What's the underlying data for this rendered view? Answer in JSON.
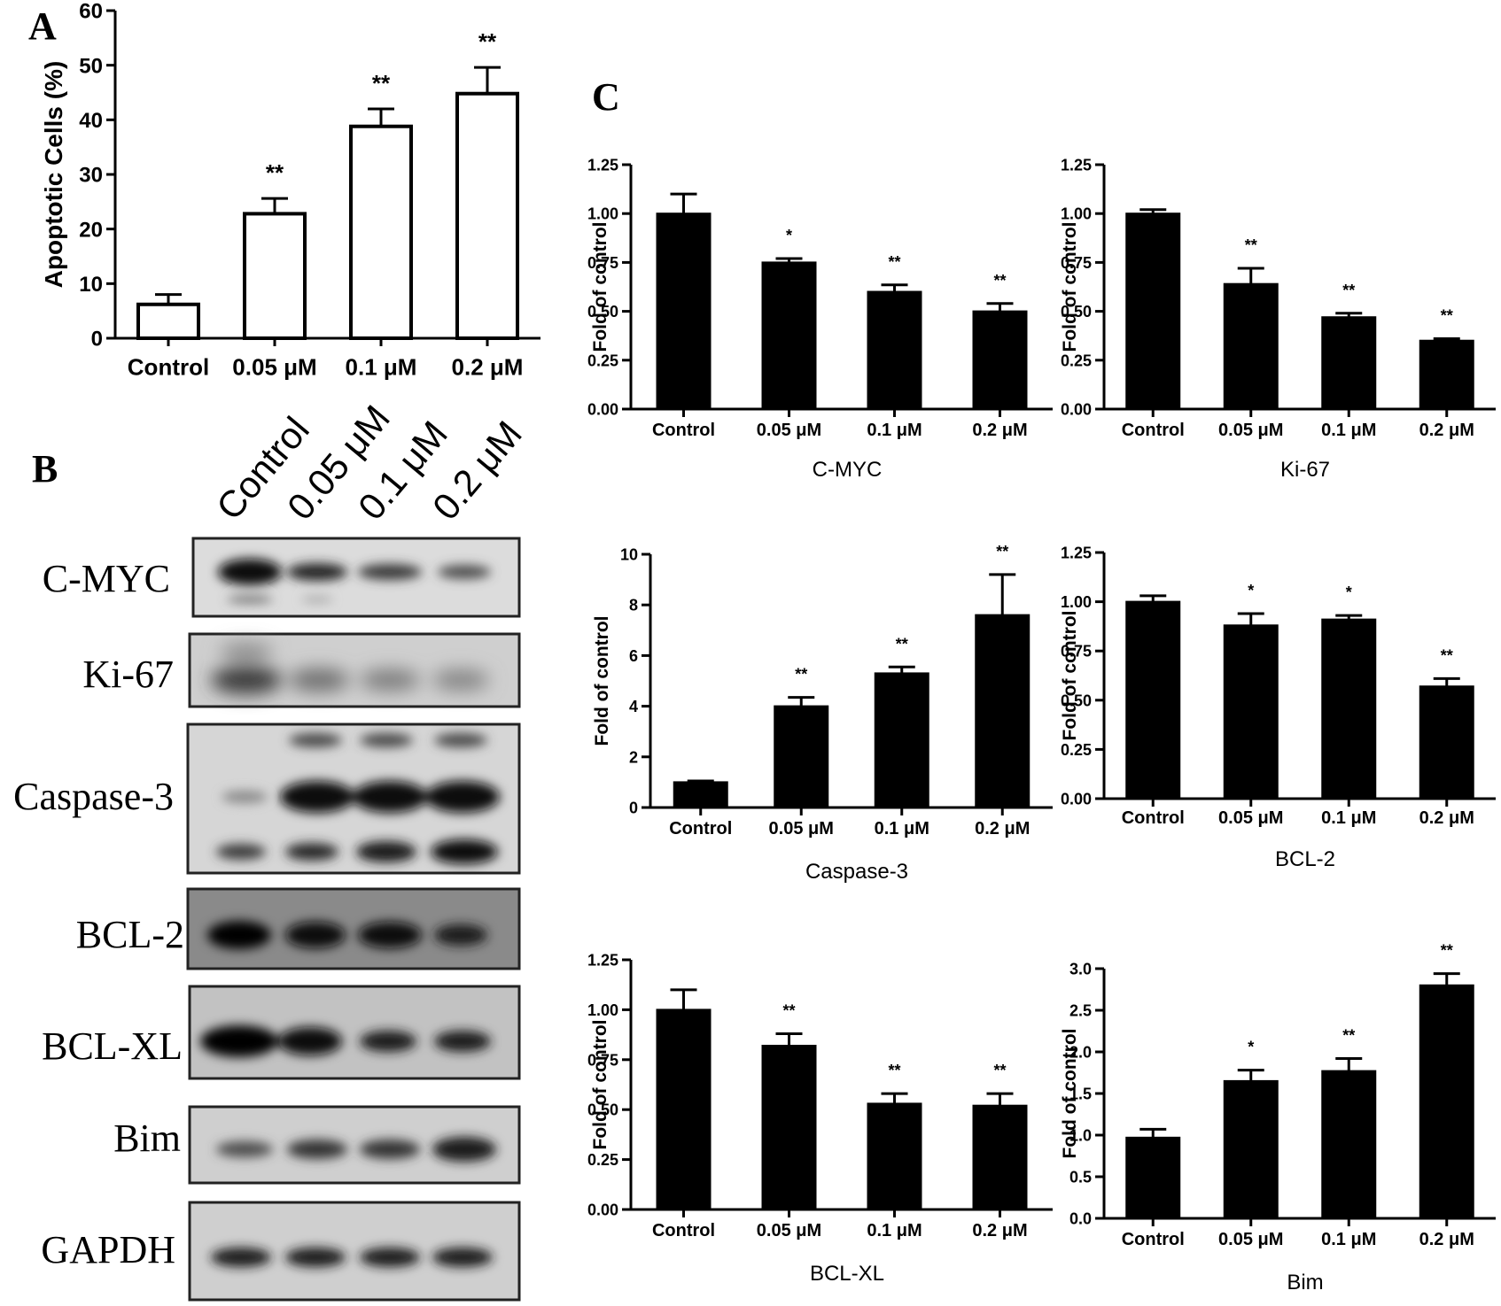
{
  "panel_labels": {
    "a": "A",
    "b": "B",
    "c": "C"
  },
  "blot": {
    "lanes": [
      "Control",
      "0.05 μM",
      "0.1 μM",
      "0.2 μM"
    ],
    "proteins": [
      "C-MYC",
      "Ki-67",
      "Caspase-3",
      "BCL-2",
      "BCL-XL",
      "Bim",
      "GAPDH"
    ]
  },
  "chart_data": [
    {
      "id": "A",
      "type": "bar",
      "style": "hollow",
      "title": "",
      "xlabel": "",
      "ylabel": "Apoptotic Cells (%)",
      "categories": [
        "Control",
        "0.05 μM",
        "0.1 μM",
        "0.2 μM"
      ],
      "values": [
        6.2,
        22.8,
        38.8,
        44.8
      ],
      "errors": [
        1.8,
        2.8,
        3.2,
        4.8
      ],
      "significance": [
        "",
        "**",
        "**",
        "**"
      ],
      "ylim": [
        0,
        60
      ],
      "yticks": [
        "0",
        "10",
        "20",
        "30",
        "40",
        "50",
        "60"
      ]
    },
    {
      "id": "C-MYC",
      "type": "bar",
      "style": "filled",
      "title": "C-MYC",
      "xlabel": "",
      "ylabel": "Fold of control",
      "categories": [
        "Control",
        "0.05 μM",
        "0.1 μM",
        "0.2 μM"
      ],
      "values": [
        1.0,
        0.75,
        0.6,
        0.5
      ],
      "errors": [
        0.1,
        0.02,
        0.035,
        0.04
      ],
      "significance": [
        "",
        "*",
        "**",
        "**"
      ],
      "ylim": [
        0,
        1.25
      ],
      "yticks": [
        "0.00",
        "0.25",
        "0.50",
        "0.75",
        "1.00",
        "1.25"
      ]
    },
    {
      "id": "Ki-67",
      "type": "bar",
      "style": "filled",
      "title": "Ki-67",
      "xlabel": "",
      "ylabel": "Fold of control",
      "categories": [
        "Control",
        "0.05 μM",
        "0.1 μM",
        "0.2 μM"
      ],
      "values": [
        1.0,
        0.64,
        0.47,
        0.35
      ],
      "errors": [
        0.02,
        0.08,
        0.02,
        0.01
      ],
      "significance": [
        "",
        "**",
        "**",
        "**"
      ],
      "ylim": [
        0,
        1.25
      ],
      "yticks": [
        "0.00",
        "0.25",
        "0.50",
        "0.75",
        "1.00",
        "1.25"
      ]
    },
    {
      "id": "Caspase-3",
      "type": "bar",
      "style": "filled",
      "title": "Caspase-3",
      "xlabel": "",
      "ylabel": "Fold of control",
      "categories": [
        "Control",
        "0.05 μM",
        "0.1 μM",
        "0.2 μM"
      ],
      "values": [
        1.0,
        4.0,
        5.3,
        7.6
      ],
      "errors": [
        0.05,
        0.35,
        0.25,
        1.6
      ],
      "significance": [
        "",
        "**",
        "**",
        "**"
      ],
      "ylim": [
        0,
        10
      ],
      "yticks": [
        "0",
        "2",
        "4",
        "6",
        "8",
        "10"
      ]
    },
    {
      "id": "BCL-2",
      "type": "bar",
      "style": "filled",
      "title": "BCL-2",
      "xlabel": "",
      "ylabel": "Fold of control",
      "categories": [
        "Control",
        "0.05 μM",
        "0.1 μM",
        "0.2 μM"
      ],
      "values": [
        1.0,
        0.88,
        0.91,
        0.57
      ],
      "errors": [
        0.03,
        0.06,
        0.02,
        0.04
      ],
      "significance": [
        "",
        "*",
        "*",
        "**"
      ],
      "ylim": [
        0,
        1.25
      ],
      "yticks": [
        "0.00",
        "0.25",
        "0.50",
        "0.75",
        "1.00",
        "1.25"
      ]
    },
    {
      "id": "BCL-XL",
      "type": "bar",
      "style": "filled",
      "title": "BCL-XL",
      "xlabel": "",
      "ylabel": "Fold of control",
      "categories": [
        "Control",
        "0.05 μM",
        "0.1 μM",
        "0.2 μM"
      ],
      "values": [
        1.0,
        0.82,
        0.53,
        0.52
      ],
      "errors": [
        0.1,
        0.06,
        0.05,
        0.06
      ],
      "significance": [
        "",
        "**",
        "**",
        "**"
      ],
      "ylim": [
        0,
        1.25
      ],
      "yticks": [
        "0.00",
        "0.25",
        "0.50",
        "0.75",
        "1.00",
        "1.25"
      ]
    },
    {
      "id": "Bim",
      "type": "bar",
      "style": "filled",
      "title": "Bim",
      "xlabel": "",
      "ylabel": "Fold of control",
      "categories": [
        "Control",
        "0.05 μM",
        "0.1 μM",
        "0.2 μM"
      ],
      "values": [
        0.97,
        1.65,
        1.77,
        2.8
      ],
      "errors": [
        0.1,
        0.13,
        0.15,
        0.14
      ],
      "significance": [
        "",
        "*",
        "**",
        "**"
      ],
      "ylim": [
        0,
        3.0
      ],
      "yticks": [
        "0.0",
        "0.5",
        "1.0",
        "1.5",
        "2.0",
        "2.5",
        "3.0"
      ]
    }
  ]
}
